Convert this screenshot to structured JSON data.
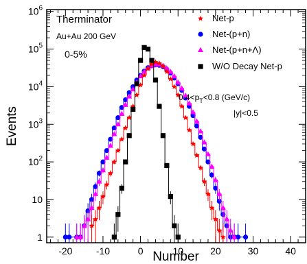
{
  "chart_data": {
    "type": "scatter",
    "xlabel": "Number",
    "ylabel": "Events",
    "xlim": [
      -25,
      44
    ],
    "ylim_log10": [
      -0.15,
      6.05
    ],
    "y_scale": "log",
    "x_ticks": [
      -20,
      -10,
      0,
      10,
      20,
      30,
      40
    ],
    "x_tick_labels": [
      "-20",
      "-10",
      "0",
      "10",
      "20",
      "30",
      "40"
    ],
    "y_ticks": [
      1,
      10,
      100,
      1000,
      10000,
      100000,
      1000000
    ],
    "y_tick_labels": [
      {
        "base": "1",
        "exp": ""
      },
      {
        "base": "10",
        "exp": ""
      },
      {
        "base": "10",
        "exp": "2"
      },
      {
        "base": "10",
        "exp": "3"
      },
      {
        "base": "10",
        "exp": "4"
      },
      {
        "base": "10",
        "exp": "5"
      },
      {
        "base": "10",
        "exp": "6"
      }
    ],
    "annotations": {
      "model": "Therminator",
      "system": "Au+Au 200 GeV",
      "centrality": "0-5%",
      "pt_cut": {
        "pre": "0.4<p",
        "sub": "T",
        "post": "<0.8 (GeV/c)"
      },
      "y_cut": "|y|<0.5"
    },
    "legend_position": "top-right",
    "series": [
      {
        "name": "Net-p",
        "marker": "star",
        "color": "#ff0000",
        "points": [
          [
            -13,
            2
          ],
          [
            -12,
            3
          ],
          [
            -11,
            6
          ],
          [
            -10,
            12
          ],
          [
            -9,
            25
          ],
          [
            -8,
            50
          ],
          [
            -7,
            100
          ],
          [
            -6,
            200
          ],
          [
            -5,
            400
          ],
          [
            -4,
            800
          ],
          [
            -3,
            1500
          ],
          [
            -2,
            3000
          ],
          [
            -1,
            6000
          ],
          [
            0,
            11000
          ],
          [
            1,
            20000
          ],
          [
            2,
            30000
          ],
          [
            3,
            40000
          ],
          [
            4,
            45000
          ],
          [
            5,
            42000
          ],
          [
            6,
            35000
          ],
          [
            7,
            25000
          ],
          [
            8,
            16000
          ],
          [
            9,
            10000
          ],
          [
            10,
            6000
          ],
          [
            11,
            3000
          ],
          [
            12,
            1500
          ],
          [
            13,
            700
          ],
          [
            14,
            300
          ],
          [
            15,
            150
          ],
          [
            16,
            70
          ],
          [
            17,
            30
          ],
          [
            18,
            14
          ],
          [
            19,
            6
          ],
          [
            20,
            3
          ],
          [
            21,
            1.5
          ],
          [
            22,
            1
          ]
        ]
      },
      {
        "name": "Net-(p+n)",
        "marker": "circle",
        "color": "#0000ff",
        "points": [
          [
            -20,
            1
          ],
          [
            -19,
            1
          ],
          [
            -17,
            1
          ],
          [
            -16,
            1
          ],
          [
            -15,
            2
          ],
          [
            -14,
            5
          ],
          [
            -13,
            10
          ],
          [
            -12,
            22
          ],
          [
            -11,
            50
          ],
          [
            -10,
            100
          ],
          [
            -9,
            200
          ],
          [
            -8,
            400
          ],
          [
            -7,
            800
          ],
          [
            -6,
            1500
          ],
          [
            -5,
            2800
          ],
          [
            -4,
            4500
          ],
          [
            -3,
            7000
          ],
          [
            -2,
            10000
          ],
          [
            -1,
            15000
          ],
          [
            0,
            20000
          ],
          [
            1,
            26000
          ],
          [
            2,
            32000
          ],
          [
            3,
            36000
          ],
          [
            4,
            38000
          ],
          [
            5,
            37000
          ],
          [
            6,
            34000
          ],
          [
            7,
            29000
          ],
          [
            8,
            23000
          ],
          [
            9,
            17000
          ],
          [
            10,
            12000
          ],
          [
            11,
            8000
          ],
          [
            12,
            5000
          ],
          [
            13,
            3000
          ],
          [
            14,
            1700
          ],
          [
            15,
            900
          ],
          [
            16,
            450
          ],
          [
            17,
            220
          ],
          [
            18,
            100
          ],
          [
            19,
            45
          ],
          [
            20,
            20
          ],
          [
            21,
            9
          ],
          [
            22,
            4
          ],
          [
            23,
            2
          ],
          [
            24,
            1
          ],
          [
            25,
            1
          ],
          [
            26,
            1
          ],
          [
            28,
            1
          ]
        ]
      },
      {
        "name": "Net-(p+n+Λ)",
        "marker": "triangle",
        "color": "#ff00ff",
        "points": [
          [
            -17,
            1
          ],
          [
            -16,
            1
          ],
          [
            -15,
            2
          ],
          [
            -14,
            3
          ],
          [
            -13,
            6
          ],
          [
            -12,
            14
          ],
          [
            -11,
            30
          ],
          [
            -10,
            60
          ],
          [
            -9,
            130
          ],
          [
            -8,
            270
          ],
          [
            -7,
            550
          ],
          [
            -6,
            1000
          ],
          [
            -5,
            1900
          ],
          [
            -4,
            3300
          ],
          [
            -3,
            5500
          ],
          [
            -2,
            8500
          ],
          [
            -1,
            13000
          ],
          [
            0,
            19000
          ],
          [
            1,
            25000
          ],
          [
            2,
            31000
          ],
          [
            3,
            36000
          ],
          [
            4,
            39000
          ],
          [
            5,
            39000
          ],
          [
            6,
            36000
          ],
          [
            7,
            31000
          ],
          [
            8,
            25000
          ],
          [
            9,
            19000
          ],
          [
            10,
            13000
          ],
          [
            11,
            9000
          ],
          [
            12,
            5800
          ],
          [
            13,
            3600
          ],
          [
            14,
            2100
          ],
          [
            15,
            1200
          ],
          [
            16,
            650
          ],
          [
            17,
            330
          ],
          [
            18,
            160
          ],
          [
            19,
            75
          ],
          [
            20,
            33
          ],
          [
            21,
            14
          ],
          [
            22,
            6
          ],
          [
            23,
            3
          ],
          [
            24,
            1.5
          ],
          [
            25,
            1
          ]
        ]
      },
      {
        "name": "W/O Decay Net-p",
        "marker": "square",
        "color": "#000000",
        "points": [
          [
            -7,
            1
          ],
          [
            -6,
            4
          ],
          [
            -5,
            20
          ],
          [
            -4,
            100
          ],
          [
            -3,
            500
          ],
          [
            -2,
            2500
          ],
          [
            -1,
            12000
          ],
          [
            0,
            50000
          ],
          [
            1,
            110000
          ],
          [
            2,
            100000
          ],
          [
            3,
            50000
          ],
          [
            4,
            15000
          ],
          [
            5,
            3000
          ],
          [
            6,
            500
          ],
          [
            7,
            80
          ],
          [
            8,
            12
          ],
          [
            9,
            2
          ],
          [
            10,
            1
          ]
        ]
      }
    ]
  }
}
